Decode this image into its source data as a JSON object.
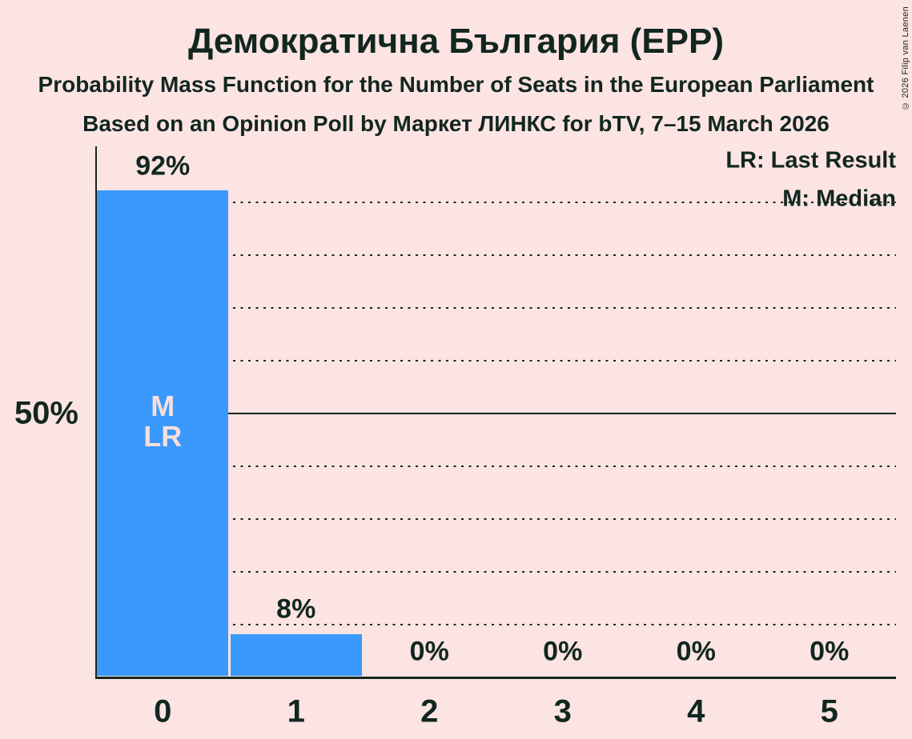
{
  "title": "Демократична България (EPP)",
  "subtitle": "Probability Mass Function for the Number of Seats in the European Parliament",
  "subsubtitle": "Based on an Opinion Poll by Маркет ЛИНКС for bTV, 7–15 March 2026",
  "copyright": "© 2026 Filip van Laenen",
  "legend": {
    "lr": "LR: Last Result",
    "m": "M: Median"
  },
  "y_axis": {
    "label_50": "50%"
  },
  "chart_data": {
    "type": "bar",
    "title": "Демократична България (EPP)",
    "xlabel": "",
    "ylabel": "",
    "categories": [
      "0",
      "1",
      "2",
      "3",
      "4",
      "5"
    ],
    "values": [
      92,
      8,
      0,
      0,
      0,
      0
    ],
    "value_labels": [
      "92%",
      "8%",
      "0%",
      "0%",
      "0%",
      "0%"
    ],
    "bar_annotations": [
      [
        "M",
        "LR"
      ],
      [],
      [],
      [],
      [],
      []
    ],
    "ylim": [
      0,
      100
    ],
    "dotted_gridlines_pct": [
      10,
      20,
      30,
      40,
      60,
      70,
      80,
      90
    ],
    "solid_gridline_pct": 50,
    "grid": "dotted horizontal, solid line at 50%",
    "legend_position": "top-right",
    "colors": {
      "background": "#fce4e3",
      "bar": "#3a99fc",
      "text": "#122620",
      "bar_label": "#f9dedd"
    }
  }
}
